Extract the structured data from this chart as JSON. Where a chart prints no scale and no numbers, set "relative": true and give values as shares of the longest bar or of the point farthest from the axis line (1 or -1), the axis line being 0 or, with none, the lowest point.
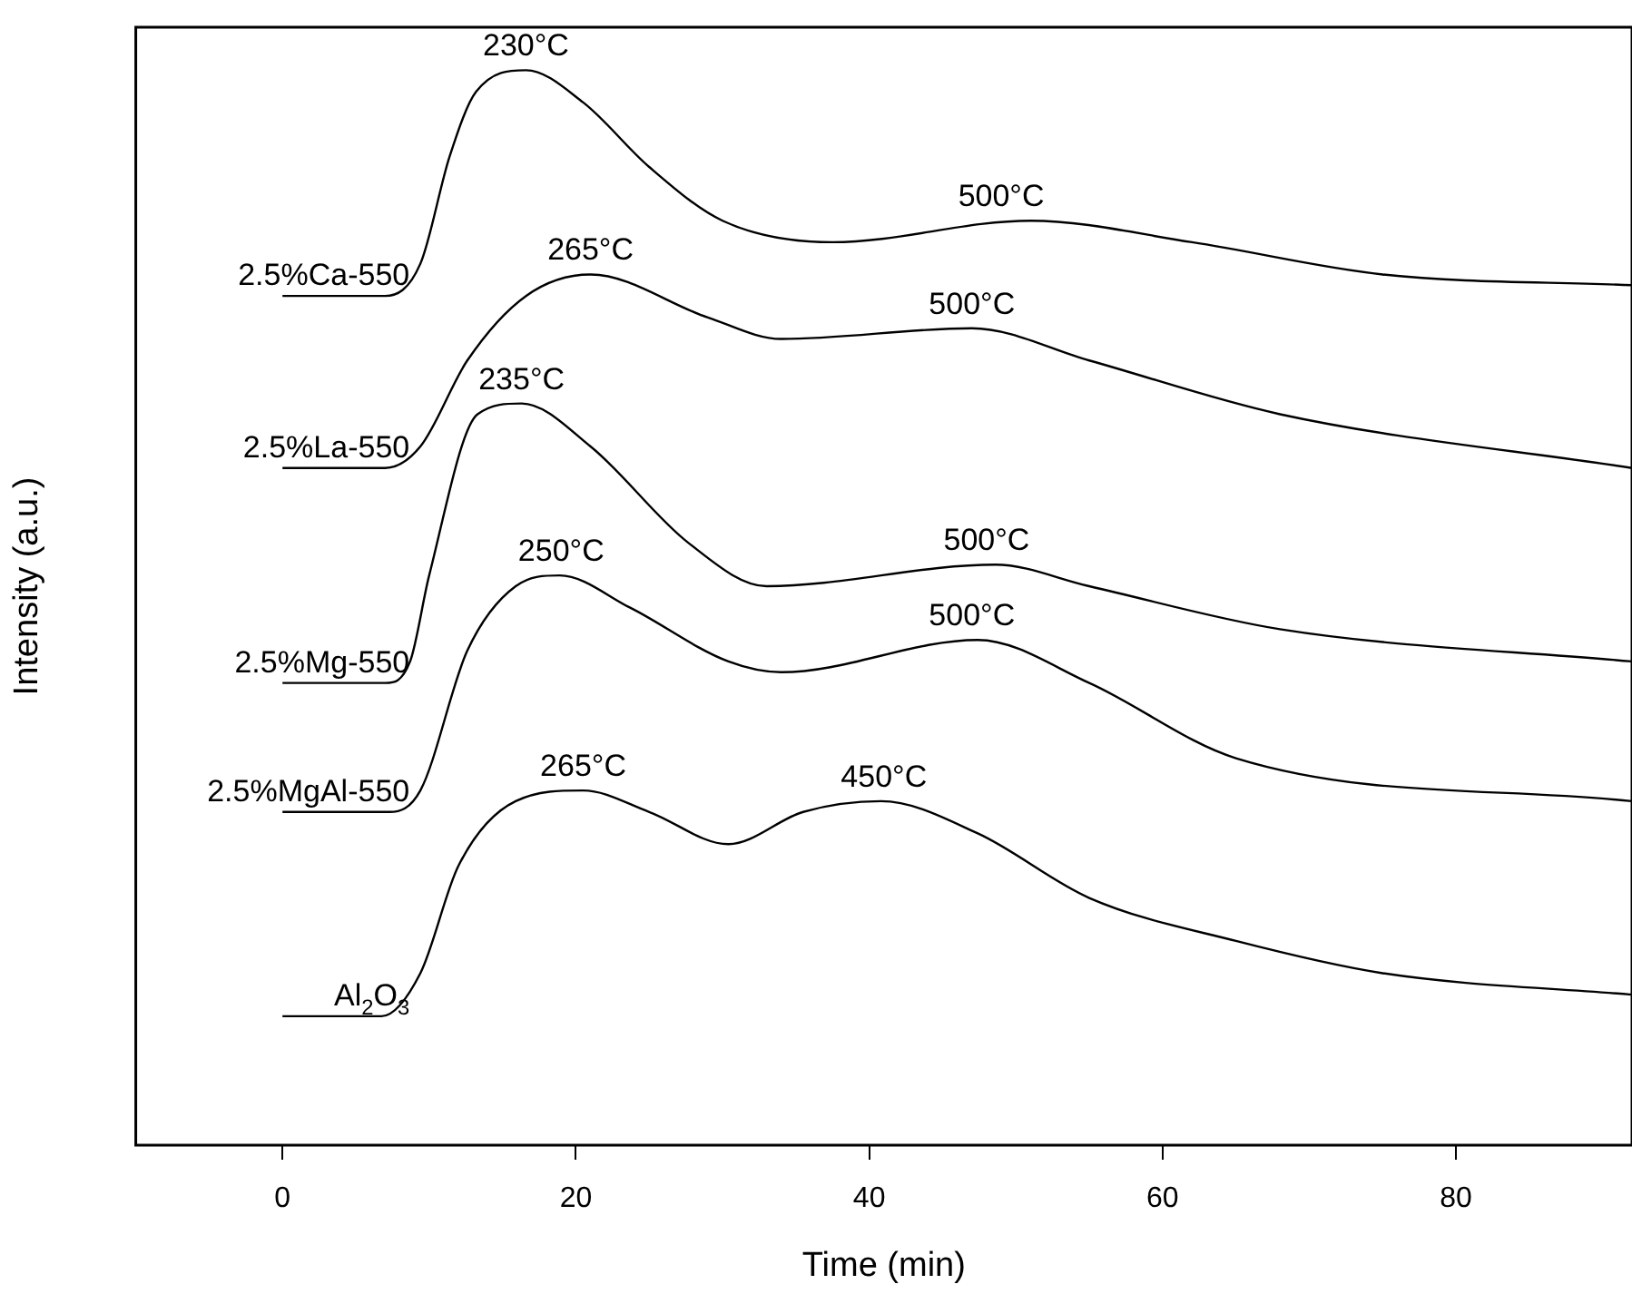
{
  "chart_data": {
    "type": "line",
    "relative": true,
    "xlabel": "Time (min)",
    "ylabel": "Intensity (a.u.)",
    "xlim": [
      -10,
      92
    ],
    "xticks": [
      0,
      20,
      40,
      60,
      80
    ],
    "series": [
      {
        "name": "2.5%Ca-550",
        "color": "#000000",
        "x": [
          0,
          7,
          9.4,
          11.4,
          13.2,
          16.6,
          20.5,
          25,
          30,
          37.5,
          51,
          62,
          75,
          92
        ],
        "values": [
          0.79,
          0.79,
          0.82,
          0.92,
          0.98,
          1.0,
          0.97,
          0.91,
          0.86,
          0.84,
          0.86,
          0.84,
          0.81,
          0.8
        ]
      },
      {
        "name": "2.5%La-550",
        "color": "#000000",
        "x": [
          0,
          7,
          9.4,
          12.6,
          16.6,
          21,
          29,
          34,
          47,
          55,
          68,
          92
        ],
        "values": [
          0.63,
          0.63,
          0.65,
          0.73,
          0.79,
          0.81,
          0.77,
          0.75,
          0.76,
          0.73,
          0.68,
          0.63
        ]
      },
      {
        "name": "2.5%Mg-550",
        "color": "#000000",
        "x": [
          0,
          7,
          8.7,
          10,
          13.3,
          16.3,
          21,
          27.7,
          33,
          48.6,
          55,
          68,
          92
        ],
        "values": [
          0.43,
          0.43,
          0.45,
          0.53,
          0.68,
          0.69,
          0.65,
          0.56,
          0.52,
          0.54,
          0.52,
          0.48,
          0.45
        ]
      },
      {
        "name": "2.5%MgAl-550",
        "color": "#000000",
        "x": [
          0,
          7.3,
          9.4,
          12.6,
          15.9,
          18.9,
          23.7,
          30.4,
          34,
          47.4,
          55,
          65,
          92
        ],
        "values": [
          0.31,
          0.31,
          0.33,
          0.46,
          0.52,
          0.53,
          0.5,
          0.45,
          0.44,
          0.47,
          0.43,
          0.36,
          0.32
        ]
      },
      {
        "name": "Al$_{2}$O$_{3}$",
        "color": "#000000",
        "x": [
          0,
          6.75,
          9.4,
          12,
          15.9,
          20.5,
          25,
          30.4,
          35.5,
          40.8,
          47.4,
          55,
          65,
          75,
          92
        ],
        "values": [
          0.12,
          0.12,
          0.16,
          0.26,
          0.32,
          0.33,
          0.31,
          0.28,
          0.31,
          0.32,
          0.29,
          0.23,
          0.19,
          0.16,
          0.14
        ]
      }
    ],
    "annotations": [
      {
        "text": "230°C",
        "x": 16.6,
        "y": 1.0
      },
      {
        "text": "500°C",
        "x": 49,
        "y": 0.86
      },
      {
        "text": "265°C",
        "x": 21,
        "y": 0.81
      },
      {
        "text": "500°C",
        "x": 47,
        "y": 0.76
      },
      {
        "text": "235°C",
        "x": 16.3,
        "y": 0.69
      },
      {
        "text": "500°C",
        "x": 48,
        "y": 0.54
      },
      {
        "text": "250°C",
        "x": 19,
        "y": 0.53
      },
      {
        "text": "500°C",
        "x": 47,
        "y": 0.47
      },
      {
        "text": "265°C",
        "x": 20.5,
        "y": 0.33
      },
      {
        "text": "450°C",
        "x": 41,
        "y": 0.32
      }
    ]
  }
}
